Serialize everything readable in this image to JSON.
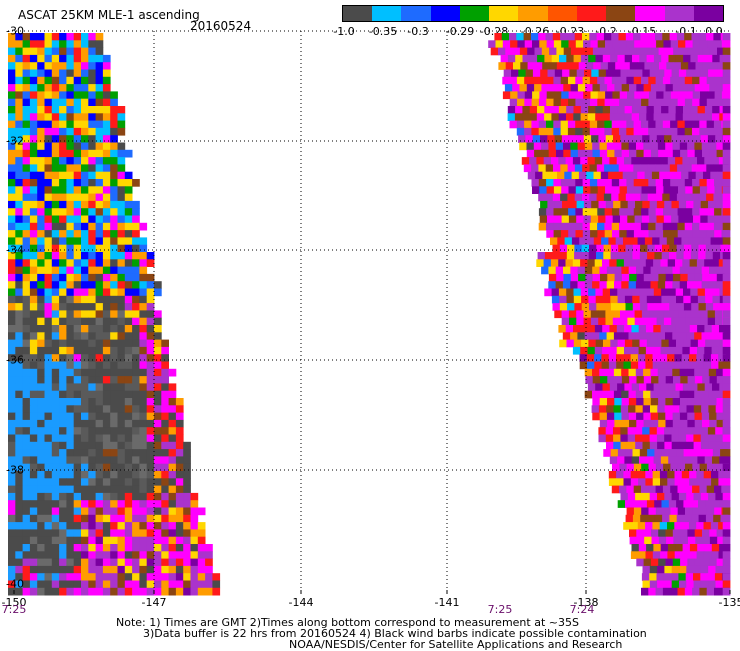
{
  "header": {
    "title": "ASCAT 25KM MLE-1 ascending",
    "date": "20160524"
  },
  "colorbar": {
    "colors": [
      "#4b4b4b",
      "#00bfff",
      "#1e6bff",
      "#0000ff",
      "#00a000",
      "#ffd700",
      "#ff9c00",
      "#ff5500",
      "#ff1a1a",
      "#8b4513",
      "#ff00ff",
      "#aa33cc",
      "#7a00a0"
    ],
    "labels": [
      "-1.0",
      "-0.35",
      "-0.3",
      "-0.29",
      "-0.28",
      "-0.26",
      "-0.23",
      "-0.2",
      "-0.15",
      "-0.1",
      "0.0"
    ]
  },
  "map": {
    "lon_range": [
      -150,
      -135
    ],
    "lat_range": [
      -40,
      -30
    ],
    "lat_ticks": [
      "-30",
      "-32",
      "-34",
      "-36",
      "-38",
      "-40"
    ],
    "lon_ticks": [
      "-150",
      "-147",
      "-144",
      "-141",
      "-138",
      "-135"
    ],
    "swath_times": [
      "7:25",
      "7:25",
      "7:24"
    ]
  },
  "notes": {
    "line1": "Note: 1) Times are GMT 2)Times along bottom correspond to measurement at ~35S",
    "line2": "3)Data buffer is 22 hrs from 20160524 4) Black wind barbs indicate possible contamination",
    "line3": "NOAA/NESDIS/Center for Satellite Applications and Research"
  }
}
